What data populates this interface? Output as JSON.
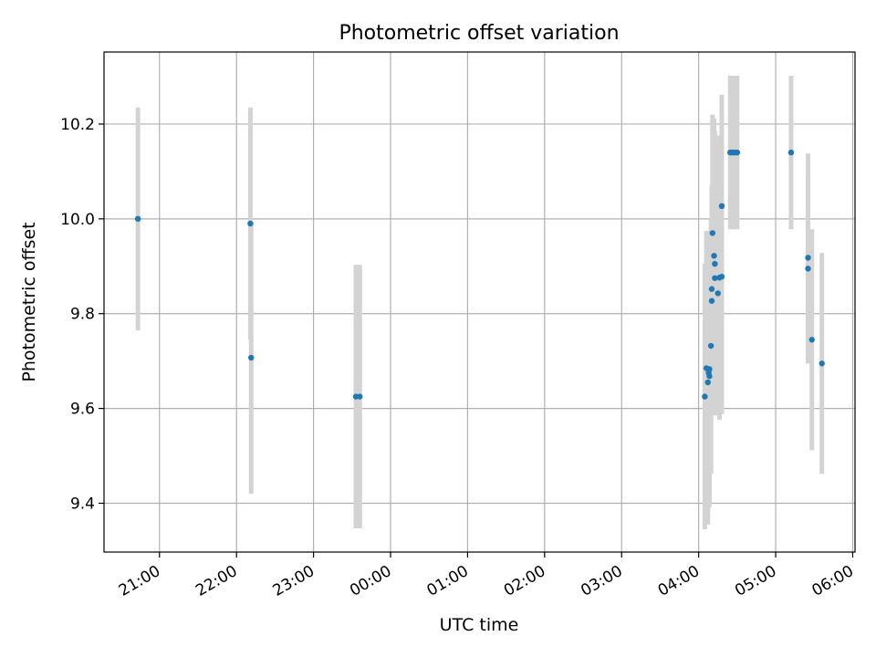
{
  "chart_data": {
    "type": "scatter",
    "title": "Photometric offset variation",
    "xlabel": "UTC time",
    "ylabel": "Photometric offset",
    "x_unit": "hours (UTC), values past 24 fall on the next day",
    "xlim": [
      20.28,
      30.03
    ],
    "ylim": [
      9.297,
      10.352
    ],
    "x_ticks": [
      {
        "value": 21,
        "label": "21:00"
      },
      {
        "value": 22,
        "label": "22:00"
      },
      {
        "value": 23,
        "label": "23:00"
      },
      {
        "value": 24,
        "label": "00:00"
      },
      {
        "value": 25,
        "label": "01:00"
      },
      {
        "value": 26,
        "label": "02:00"
      },
      {
        "value": 27,
        "label": "03:00"
      },
      {
        "value": 28,
        "label": "04:00"
      },
      {
        "value": 29,
        "label": "05:00"
      },
      {
        "value": 30,
        "label": "06:00"
      }
    ],
    "y_ticks": [
      {
        "value": 9.4,
        "label": "9.4"
      },
      {
        "value": 9.6,
        "label": "9.6"
      },
      {
        "value": 9.8,
        "label": "9.8"
      },
      {
        "value": 10.0,
        "label": "10.0"
      },
      {
        "value": 10.2,
        "label": "10.2"
      }
    ],
    "grid": true,
    "colors": {
      "points": "#1f77b4",
      "errorbars": "#d3d3d3",
      "grid": "#b0b0b0"
    },
    "points": [
      {
        "x": 20.72,
        "y": 10.0,
        "err": 0.235
      },
      {
        "x": 22.18,
        "y": 9.99,
        "err": 0.245
      },
      {
        "x": 22.19,
        "y": 9.707,
        "err": 0.287
      },
      {
        "x": 23.55,
        "y": 9.625,
        "err": 0.278
      },
      {
        "x": 23.6,
        "y": 9.625,
        "err": 0.278
      },
      {
        "x": 28.08,
        "y": 9.625,
        "err": 0.28
      },
      {
        "x": 28.1,
        "y": 9.685,
        "err": 0.29
      },
      {
        "x": 28.12,
        "y": 9.655,
        "err": 0.3
      },
      {
        "x": 28.13,
        "y": 9.675,
        "err": 0.285
      },
      {
        "x": 28.14,
        "y": 9.683,
        "err": 0.29
      },
      {
        "x": 28.14,
        "y": 9.668,
        "err": 0.25
      },
      {
        "x": 28.16,
        "y": 9.732,
        "err": 0.27
      },
      {
        "x": 28.17,
        "y": 9.852,
        "err": 0.22
      },
      {
        "x": 28.17,
        "y": 9.827,
        "err": 0.23
      },
      {
        "x": 28.18,
        "y": 9.97,
        "err": 0.25
      },
      {
        "x": 28.2,
        "y": 9.922,
        "err": 0.29
      },
      {
        "x": 28.21,
        "y": 9.875,
        "err": 0.29
      },
      {
        "x": 28.21,
        "y": 9.905,
        "err": 0.28
      },
      {
        "x": 28.25,
        "y": 9.843,
        "err": 0.25
      },
      {
        "x": 28.27,
        "y": 9.876,
        "err": 0.3
      },
      {
        "x": 28.3,
        "y": 9.878,
        "err": 0.29
      },
      {
        "x": 28.3,
        "y": 10.027,
        "err": 0.235
      },
      {
        "x": 28.41,
        "y": 10.14,
        "err": 0.162
      },
      {
        "x": 28.44,
        "y": 10.14,
        "err": 0.162
      },
      {
        "x": 28.47,
        "y": 10.14,
        "err": 0.162
      },
      {
        "x": 28.5,
        "y": 10.14,
        "err": 0.162
      },
      {
        "x": 29.2,
        "y": 10.14,
        "err": 0.162
      },
      {
        "x": 29.42,
        "y": 9.918,
        "err": 0.22
      },
      {
        "x": 29.42,
        "y": 9.895,
        "err": 0.2
      },
      {
        "x": 29.47,
        "y": 9.745,
        "err": 0.233
      },
      {
        "x": 29.6,
        "y": 9.695,
        "err": 0.233
      }
    ]
  }
}
